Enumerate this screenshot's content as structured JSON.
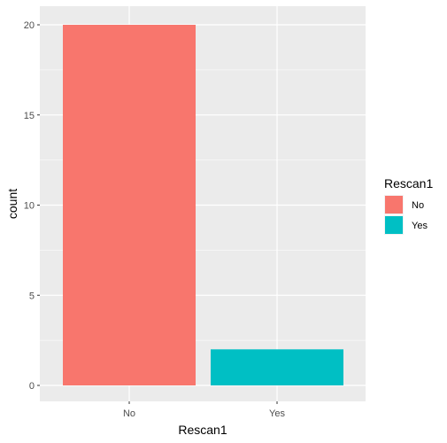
{
  "chart_data": {
    "type": "bar",
    "categories": [
      "No",
      "Yes"
    ],
    "values": [
      20,
      2
    ],
    "colors": [
      "#F8766D",
      "#00BFC4"
    ],
    "title": "",
    "xlabel": "Rescan1",
    "ylabel": "count",
    "ylim": [
      0,
      20
    ],
    "yticks": [
      0,
      5,
      10,
      15,
      20
    ],
    "grid": true,
    "panel_background": "#EBEBEB",
    "legend": {
      "title": "Rescan1",
      "placement": "right",
      "entries": [
        {
          "label": "No",
          "color": "#F8766D"
        },
        {
          "label": "Yes",
          "color": "#00BFC4"
        }
      ]
    }
  }
}
